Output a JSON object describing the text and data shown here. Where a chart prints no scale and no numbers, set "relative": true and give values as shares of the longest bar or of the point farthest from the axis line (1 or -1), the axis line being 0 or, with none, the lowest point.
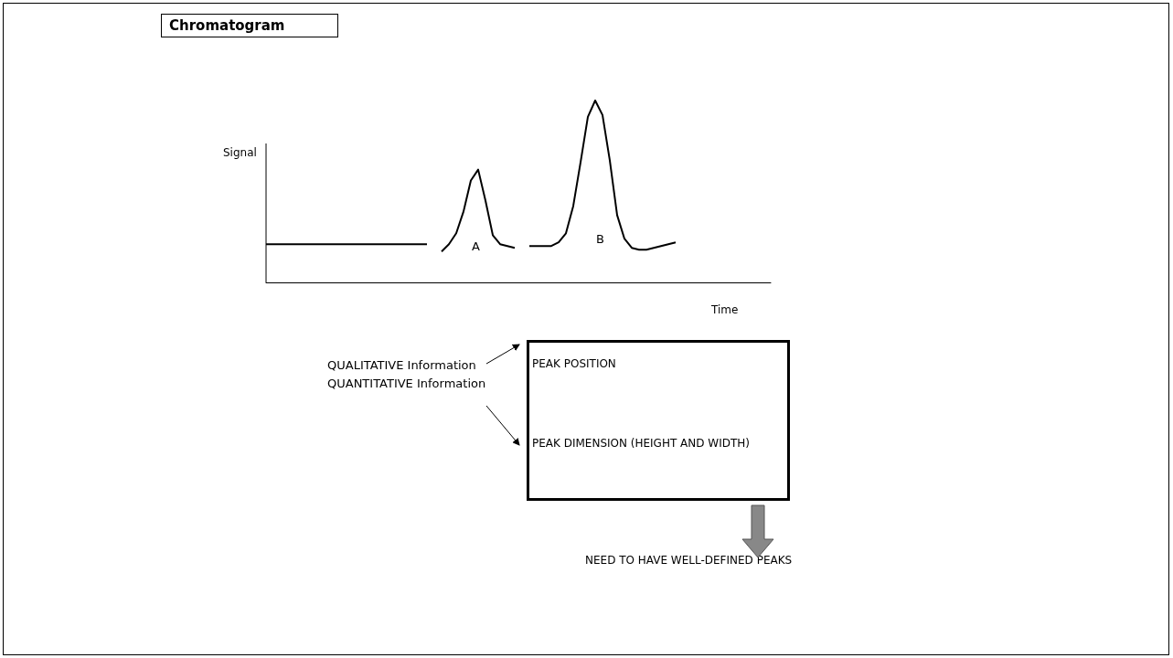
{
  "chart_data": {
    "type": "line",
    "title": "Chromatogram",
    "xlabel": "Time",
    "ylabel": "Signal",
    "relative": true,
    "categories": [
      null,
      null,
      null,
      null,
      null,
      null,
      null,
      null,
      null,
      null,
      null,
      null,
      null,
      null,
      null,
      null,
      null,
      null,
      null,
      null,
      null,
      null,
      null,
      null,
      null,
      null,
      null,
      null,
      null,
      null,
      null,
      null,
      null,
      null,
      null,
      null,
      null,
      null,
      null,
      null,
      null,
      null,
      null,
      null,
      null,
      null,
      null,
      null,
      null,
      null,
      null,
      null,
      null,
      null,
      null,
      null,
      null,
      null,
      null,
      null,
      null,
      null,
      null,
      null,
      null,
      null,
      null,
      null,
      null,
      null
    ],
    "series": [
      {
        "color": "#000000",
        "values": [
          0.21,
          0.21,
          0.21,
          0.21,
          0.21,
          0.21,
          0.21,
          0.21,
          0.21,
          0.21,
          0.21,
          0.21,
          0.21,
          0.21,
          0.21,
          0.21,
          0.21,
          0.21,
          0.21,
          0.21,
          0.21,
          0.21,
          0.21,
          null,
          null,
          null,
          null,
          null,
          null,
          null,
          null,
          null,
          null,
          null,
          null,
          null,
          null,
          null,
          null,
          null,
          null,
          null,
          null,
          null,
          null,
          null,
          null,
          null,
          null,
          null,
          null,
          null,
          null,
          null,
          null,
          null,
          null,
          null,
          null,
          null,
          null,
          null,
          null,
          null,
          null,
          null,
          null,
          null,
          null,
          null
        ]
      },
      {
        "color": "#000000",
        "values": [
          null,
          null,
          null,
          null,
          null,
          null,
          null,
          null,
          null,
          null,
          null,
          null,
          null,
          null,
          null,
          null,
          null,
          null,
          null,
          null,
          null,
          null,
          null,
          null,
          0.17,
          0.21,
          0.27,
          0.39,
          0.56,
          0.62,
          0.45,
          0.26,
          0.21,
          0.2,
          0.19,
          null,
          null,
          null,
          null,
          null,
          null,
          null,
          null,
          null,
          null,
          null,
          null,
          null,
          null,
          null,
          null,
          null,
          null,
          null,
          null,
          null,
          null,
          null,
          null,
          null,
          null,
          null,
          null,
          null,
          null,
          null,
          null,
          null,
          null,
          null
        ]
      },
      {
        "color": "#000000",
        "values": [
          null,
          null,
          null,
          null,
          null,
          null,
          null,
          null,
          null,
          null,
          null,
          null,
          null,
          null,
          null,
          null,
          null,
          null,
          null,
          null,
          null,
          null,
          null,
          null,
          null,
          null,
          null,
          null,
          null,
          null,
          null,
          null,
          null,
          null,
          null,
          null,
          0.2,
          0.2,
          0.2,
          0.2,
          0.22,
          0.27,
          0.42,
          0.66,
          0.91,
          1.0,
          0.92,
          0.67,
          0.37,
          0.24,
          0.19,
          0.18,
          0.18,
          0.19,
          0.2,
          0.21,
          0.22,
          null,
          null,
          null,
          null,
          null,
          null,
          null,
          null,
          null,
          null,
          null,
          null,
          null
        ]
      }
    ],
    "annotations": [
      "A",
      "B",
      "QUALITATIVE Information",
      "QUANTITATIVE Information",
      "PEAK POSITION",
      "PEAK DIMENSION (HEIGHT AND WIDTH)",
      "NEED TO HAVE WELL-DEFINED PEAKS"
    ]
  }
}
